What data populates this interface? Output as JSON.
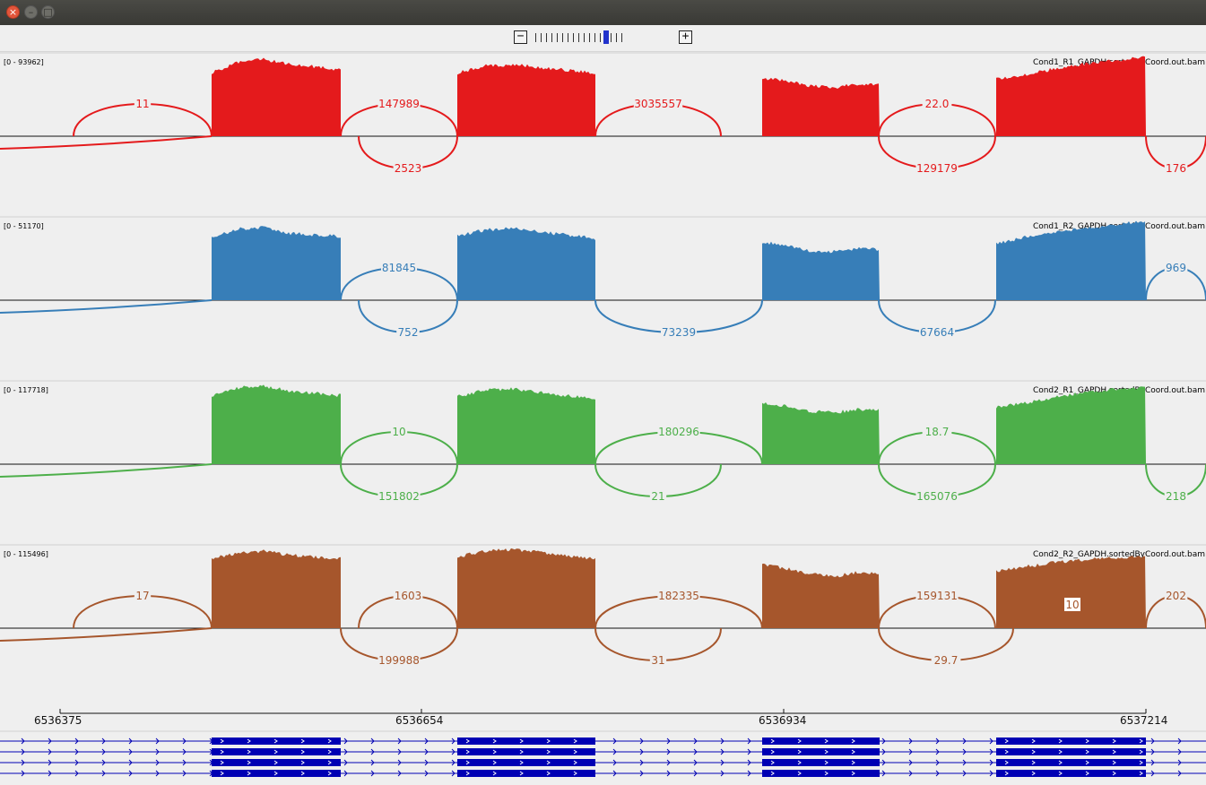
{
  "window": {
    "close_glyph": "×",
    "minimize_glyph": "–",
    "maximize_glyph": "□"
  },
  "zoom": {
    "minus_label": "−",
    "plus_label": "+",
    "levels": 17,
    "current_level": 13
  },
  "lanes": [
    {
      "name": "Cond1_R1_GAPDH.sortedByCoord.out.bam",
      "range": "[0 - 93962]",
      "color": "#e41a1c",
      "exons": [
        {
          "max": 86,
          "profile": [
            0.82,
            0.96,
            1.0,
            0.93,
            0.9,
            0.86
          ]
        },
        {
          "max": 80,
          "profile": [
            0.88,
            0.98,
            1.0,
            0.96,
            0.92,
            0.88
          ]
        },
        {
          "max": 66,
          "profile": [
            0.97,
            0.94,
            0.85,
            0.82,
            0.88,
            0.87
          ]
        },
        {
          "max": 88,
          "profile": [
            0.72,
            0.78,
            0.86,
            0.92,
            0.96,
            1.0
          ]
        }
      ],
      "junctions": [
        {
          "label": "11",
          "side": "above",
          "x1": 82,
          "x2": 236
        },
        {
          "label": "147989",
          "side": "above",
          "x1": 380,
          "x2": 510
        },
        {
          "label": "3035557",
          "side": "above",
          "x1": 664,
          "x2": 804
        },
        {
          "label": "22.0",
          "side": "above",
          "x1": 980,
          "x2": 1110
        },
        {
          "label": "2523",
          "side": "below",
          "x1": 400,
          "x2": 510
        },
        {
          "label": "129179",
          "side": "below",
          "x1": 980,
          "x2": 1110
        },
        {
          "label": "176",
          "side": "below",
          "x1": 1278,
          "x2": 1345
        }
      ]
    },
    {
      "name": "Cond1_R2_GAPDH.sortedByCoord.out.bam",
      "range": "[0 - 51170]",
      "color": "#377eb8",
      "exons": [
        {
          "max": 81,
          "profile": [
            0.86,
            0.98,
            1.0,
            0.92,
            0.9,
            0.88
          ]
        },
        {
          "max": 80,
          "profile": [
            0.9,
            0.98,
            1.0,
            0.95,
            0.91,
            0.86
          ]
        },
        {
          "max": 66,
          "profile": [
            0.98,
            0.93,
            0.84,
            0.82,
            0.87,
            0.86
          ]
        },
        {
          "max": 88,
          "profile": [
            0.72,
            0.8,
            0.86,
            0.92,
            0.96,
            1.0
          ]
        }
      ],
      "junctions": [
        {
          "label": "81845",
          "side": "above",
          "x1": 380,
          "x2": 510
        },
        {
          "label": "969",
          "side": "above",
          "x1": 1278,
          "x2": 1345
        },
        {
          "label": "752",
          "side": "below",
          "x1": 400,
          "x2": 510
        },
        {
          "label": "73239",
          "side": "below",
          "x1": 664,
          "x2": 850
        },
        {
          "label": "67664",
          "side": "below",
          "x1": 980,
          "x2": 1110
        }
      ]
    },
    {
      "name": "Cond2_R1_GAPDH.sortedByCoord.out.bam",
      "range": "[0 - 117718]",
      "color": "#4daf4a",
      "exons": [
        {
          "max": 87,
          "profile": [
            0.88,
            0.98,
            1.0,
            0.94,
            0.91,
            0.88
          ]
        },
        {
          "max": 84,
          "profile": [
            0.9,
            0.98,
            1.0,
            0.95,
            0.91,
            0.87
          ]
        },
        {
          "max": 70,
          "profile": [
            0.97,
            0.93,
            0.85,
            0.82,
            0.87,
            0.86
          ]
        },
        {
          "max": 86,
          "profile": [
            0.74,
            0.8,
            0.87,
            0.93,
            0.97,
            1.0
          ]
        }
      ],
      "junctions": [
        {
          "label": "10",
          "side": "above",
          "x1": 380,
          "x2": 510
        },
        {
          "label": "180296",
          "side": "above",
          "x1": 664,
          "x2": 850
        },
        {
          "label": "18.7",
          "side": "above",
          "x1": 980,
          "x2": 1110
        },
        {
          "label": "151802",
          "side": "below",
          "x1": 380,
          "x2": 510
        },
        {
          "label": "21",
          "side": "below",
          "x1": 664,
          "x2": 804
        },
        {
          "label": "165076",
          "side": "below",
          "x1": 980,
          "x2": 1110
        },
        {
          "label": "218",
          "side": "below",
          "x1": 1278,
          "x2": 1345
        }
      ]
    },
    {
      "name": "Cond2_R2_GAPDH.sortedByCoord.out.bam",
      "range": "[0 - 115496]",
      "color": "#a6562c",
      "exons": [
        {
          "max": 86,
          "profile": [
            0.9,
            0.98,
            1.0,
            0.95,
            0.92,
            0.9
          ]
        },
        {
          "max": 88,
          "profile": [
            0.9,
            0.98,
            1.0,
            0.96,
            0.92,
            0.88
          ]
        },
        {
          "max": 72,
          "profile": [
            0.98,
            0.93,
            0.84,
            0.8,
            0.86,
            0.85
          ]
        },
        {
          "max": 80,
          "profile": [
            0.8,
            0.86,
            0.92,
            0.96,
            0.98,
            1.0
          ]
        }
      ],
      "junctions": [
        {
          "label": "17",
          "side": "above",
          "x1": 82,
          "x2": 236
        },
        {
          "label": "1603",
          "side": "above",
          "x1": 400,
          "x2": 510
        },
        {
          "label": "182335",
          "side": "above",
          "x1": 664,
          "x2": 850
        },
        {
          "label": "159131",
          "side": "above",
          "x1": 980,
          "x2": 1110
        },
        {
          "label": "10",
          "side": "boxed",
          "x1": 1110,
          "x2": 1278
        },
        {
          "label": "202",
          "side": "above",
          "x1": 1278,
          "x2": 1345
        },
        {
          "label": "199988",
          "side": "below",
          "x1": 380,
          "x2": 510
        },
        {
          "label": "31",
          "side": "below",
          "x1": 664,
          "x2": 804
        },
        {
          "label": "29.7",
          "side": "below",
          "x1": 980,
          "x2": 1130
        }
      ]
    }
  ],
  "axis": {
    "ticks": [
      "6536375",
      "6536654",
      "6536934",
      "6537214"
    ]
  },
  "gene_model": {
    "color": "#0000b4",
    "transcripts": 4
  }
}
